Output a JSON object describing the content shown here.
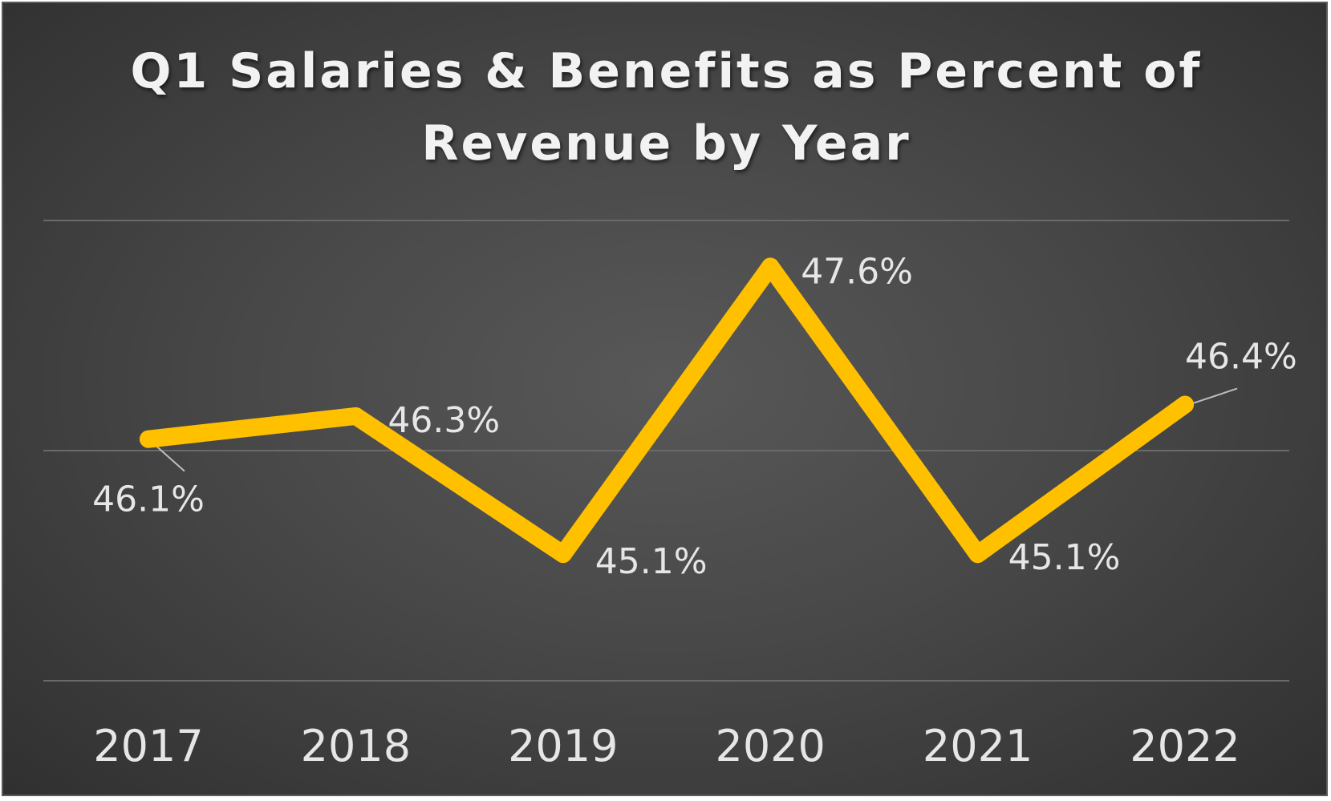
{
  "chart_data": {
    "type": "line",
    "title": "Q1 Salaries & Benefits  as Percent of\nRevenue by Year",
    "xlabel": "",
    "ylabel": "",
    "categories": [
      "2017",
      "2018",
      "2019",
      "2020",
      "2021",
      "2022"
    ],
    "series": [
      {
        "values": [
          46.1,
          46.3,
          45.1,
          47.6,
          45.1,
          46.4
        ],
        "labels": [
          "46.1%",
          "46.3%",
          "45.1%",
          "47.6%",
          "45.1%",
          "46.4%"
        ],
        "color": "#FFC000"
      }
    ],
    "ylim": [
      44.0,
      48.0
    ],
    "y_gridlines": [
      44.0,
      46.0,
      48.0
    ],
    "y_axis_visible": false,
    "grid": true,
    "legend": "none",
    "background": "#4a4a4a",
    "gridline_color": "#6a6a6a",
    "text_color": "#e6e6e6"
  }
}
